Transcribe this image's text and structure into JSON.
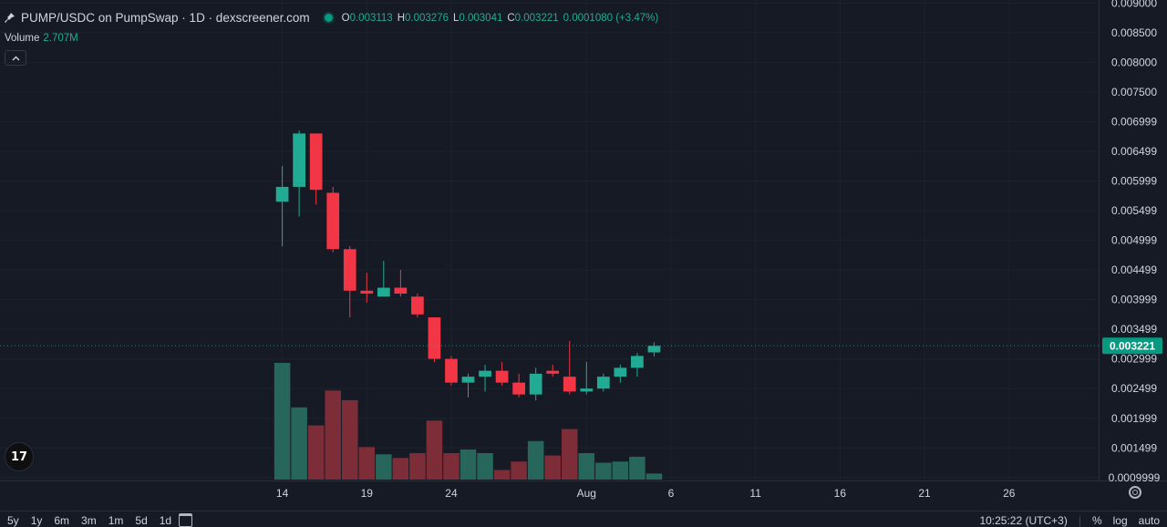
{
  "header": {
    "symbol": "PUMP/USDC on PumpSwap · 1D · dexscreener.com",
    "o_key": "O",
    "o_val": "0.003113",
    "h_key": "H",
    "h_val": "0.003276",
    "l_key": "L",
    "l_val": "0.003041",
    "c_key": "C",
    "c_val": "0.003221",
    "change": "0.0001080 (+3.47%)",
    "volume_label": "Volume",
    "volume_value": "2.707M",
    "collapse_icon": "chevron-up-icon"
  },
  "bottom": {
    "ranges": [
      "5y",
      "1y",
      "6m",
      "3m",
      "1m",
      "5d",
      "1d"
    ],
    "time": "10:25:22 (UTC+3)",
    "percent": "%",
    "log": "log",
    "auto": "auto"
  },
  "colors": {
    "up": "#22ab94",
    "down": "#f23645",
    "up_vol": "#26665b",
    "down_vol": "#7c2d38",
    "bg": "#161a25",
    "grid": "#1e222d",
    "axis_text": "#d1d4dc"
  },
  "chart_data": {
    "type": "candlestick",
    "title": "",
    "xlabel": "",
    "ylabel": "",
    "x_ticks": [
      "14",
      "19",
      "24",
      "Aug",
      "6",
      "11",
      "16",
      "21",
      "26"
    ],
    "x_tick_days": [
      14,
      19,
      24,
      32,
      37,
      42,
      47,
      52,
      57
    ],
    "xlim": [
      -2.7,
      62.3
    ],
    "y_ticks": [
      "0.009000",
      "0.008500",
      "0.008000",
      "0.007500",
      "0.006999",
      "0.006499",
      "0.005999",
      "0.005499",
      "0.004999",
      "0.004499",
      "0.003999",
      "0.003499",
      "0.002999",
      "0.002499",
      "0.001999",
      "0.001499",
      "0.0009999"
    ],
    "y_tick_values": [
      0.009,
      0.0085,
      0.008,
      0.0075,
      0.006999,
      0.006499,
      0.005999,
      0.005499,
      0.004999,
      0.004499,
      0.003999,
      0.003499,
      0.002999,
      0.002499,
      0.001999,
      0.001499,
      0.0009999
    ],
    "ylim": [
      0.00095,
      0.00905
    ],
    "last_price_label": "0.003221",
    "last_price": 0.003221,
    "grid": true,
    "candles": [
      {
        "day": 14,
        "o": 0.00565,
        "h": 0.00625,
        "l": 0.0049,
        "c": 0.0059
      },
      {
        "day": 15,
        "o": 0.0059,
        "h": 0.00685,
        "l": 0.0054,
        "c": 0.0068
      },
      {
        "day": 16,
        "o": 0.0068,
        "h": 0.0068,
        "l": 0.0056,
        "c": 0.00585
      },
      {
        "day": 17,
        "o": 0.0058,
        "h": 0.0059,
        "l": 0.0048,
        "c": 0.00485
      },
      {
        "day": 18,
        "o": 0.00485,
        "h": 0.0049,
        "l": 0.0037,
        "c": 0.00415
      },
      {
        "day": 19,
        "o": 0.00415,
        "h": 0.00445,
        "l": 0.00395,
        "c": 0.0041
      },
      {
        "day": 20,
        "o": 0.00405,
        "h": 0.00465,
        "l": 0.00405,
        "c": 0.0042
      },
      {
        "day": 21,
        "o": 0.0042,
        "h": 0.0045,
        "l": 0.00405,
        "c": 0.0041
      },
      {
        "day": 22,
        "o": 0.00405,
        "h": 0.0041,
        "l": 0.0037,
        "c": 0.00375
      },
      {
        "day": 23,
        "o": 0.0037,
        "h": 0.0037,
        "l": 0.00295,
        "c": 0.003
      },
      {
        "day": 24,
        "o": 0.003,
        "h": 0.00305,
        "l": 0.00255,
        "c": 0.0026
      },
      {
        "day": 25,
        "o": 0.0026,
        "h": 0.00275,
        "l": 0.00235,
        "c": 0.0027
      },
      {
        "day": 26,
        "o": 0.0027,
        "h": 0.0029,
        "l": 0.00245,
        "c": 0.0028
      },
      {
        "day": 27,
        "o": 0.0028,
        "h": 0.00295,
        "l": 0.00255,
        "c": 0.0026
      },
      {
        "day": 28,
        "o": 0.0026,
        "h": 0.00275,
        "l": 0.00235,
        "c": 0.0024
      },
      {
        "day": 29,
        "o": 0.0024,
        "h": 0.00285,
        "l": 0.0023,
        "c": 0.00275
      },
      {
        "day": 30,
        "o": 0.0028,
        "h": 0.0029,
        "l": 0.0027,
        "c": 0.00275
      },
      {
        "day": 31,
        "o": 0.0027,
        "h": 0.0033,
        "l": 0.0024,
        "c": 0.00245
      },
      {
        "day": 32,
        "o": 0.00245,
        "h": 0.00295,
        "l": 0.0024,
        "c": 0.0025
      },
      {
        "day": 33,
        "o": 0.0025,
        "h": 0.00275,
        "l": 0.00245,
        "c": 0.0027
      },
      {
        "day": 34,
        "o": 0.0027,
        "h": 0.0029,
        "l": 0.0026,
        "c": 0.00285
      },
      {
        "day": 35,
        "o": 0.00285,
        "h": 0.0031,
        "l": 0.0027,
        "c": 0.00305
      },
      {
        "day": 36,
        "o": 0.00311,
        "h": 0.00328,
        "l": 0.00304,
        "c": 0.00322
      }
    ],
    "volume_series": {
      "name": "Volume",
      "scale_max": 1.0,
      "values": [
        0.97,
        0.6,
        0.45,
        0.74,
        0.66,
        0.27,
        0.21,
        0.18,
        0.22,
        0.49,
        0.22,
        0.25,
        0.22,
        0.08,
        0.15,
        0.32,
        0.2,
        0.42,
        0.22,
        0.14,
        0.15,
        0.19,
        0.05
      ]
    }
  }
}
